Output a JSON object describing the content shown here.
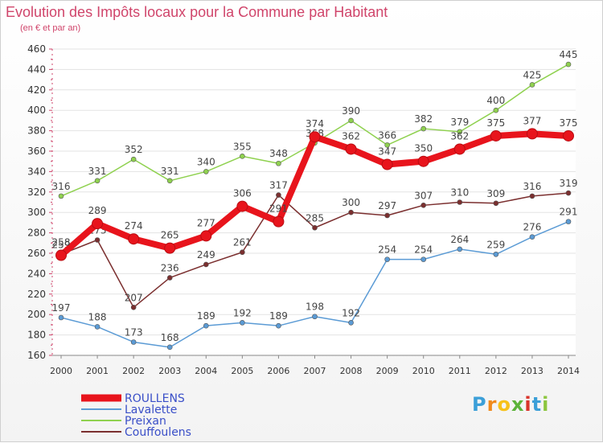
{
  "header": {
    "title": "Evolution des Impôts locaux pour la Commune par Habitant",
    "subtitle": "(en € et par an)"
  },
  "logo": {
    "letters": [
      "P",
      "r",
      "o",
      "x",
      "i",
      "t",
      "i"
    ],
    "colors": [
      "#3b9fd8",
      "#f08a1c",
      "#f7c21a",
      "#5bb33a",
      "#d9342b",
      "#3b9fd8",
      "#8cc63f"
    ]
  },
  "chart_data": {
    "type": "line",
    "x": [
      2000,
      2001,
      2002,
      2003,
      2004,
      2005,
      2006,
      2007,
      2008,
      2009,
      2010,
      2011,
      2012,
      2013,
      2014
    ],
    "ylim": [
      160,
      460
    ],
    "y_ticks": [
      160,
      180,
      200,
      220,
      240,
      260,
      280,
      300,
      320,
      340,
      360,
      380,
      400,
      420,
      440,
      460
    ],
    "grid": "horizontal",
    "legend_position": "bottom-left",
    "series": [
      {
        "name": "ROULLENS",
        "color": "#e8141c",
        "emphasis": true,
        "values": [
          258,
          289,
          274,
          265,
          277,
          306,
          291,
          374,
          362,
          347,
          350,
          362,
          375,
          377,
          375
        ]
      },
      {
        "name": "Lavalette",
        "color": "#5b9bd5",
        "emphasis": false,
        "values": [
          197,
          188,
          173,
          168,
          189,
          192,
          189,
          198,
          192,
          254,
          254,
          264,
          259,
          276,
          291
        ]
      },
      {
        "name": "Preixan",
        "color": "#8fd14f",
        "emphasis": false,
        "values": [
          316,
          331,
          352,
          331,
          340,
          355,
          348,
          368,
          390,
          366,
          382,
          379,
          400,
          425,
          445
        ]
      },
      {
        "name": "Couffoulens",
        "color": "#7b2f2f",
        "emphasis": false,
        "values": [
          259,
          273,
          207,
          236,
          249,
          261,
          317,
          285,
          300,
          297,
          307,
          310,
          309,
          316,
          319
        ]
      }
    ]
  }
}
